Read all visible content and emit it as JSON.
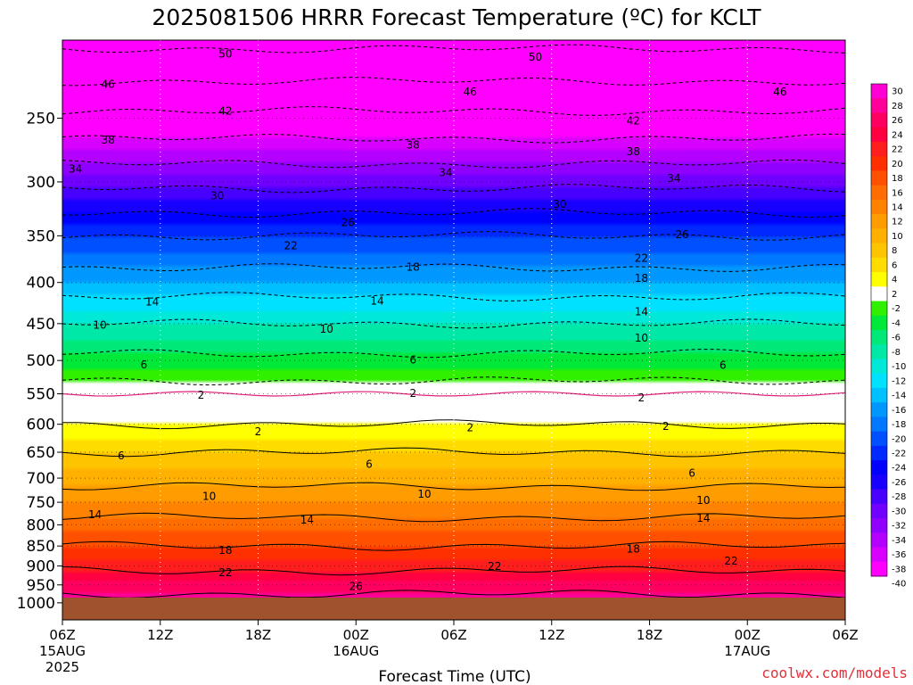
{
  "chart_data": {
    "type": "heatmap",
    "title": "2025081506 HRRR Forecast Temperature (ºC) for KCLT",
    "xlabel": "Forecast Time (UTC)",
    "ylabel": "",
    "y_axis": {
      "scale": "log-pressure",
      "inverted": true,
      "range": [
        1050,
        200
      ],
      "ticks": [
        "250",
        "300",
        "350",
        "400",
        "450",
        "500",
        "550",
        "600",
        "650",
        "700",
        "750",
        "800",
        "850",
        "900",
        "950",
        "1000"
      ],
      "tick_values": [
        250,
        300,
        350,
        400,
        450,
        500,
        550,
        600,
        650,
        700,
        750,
        800,
        850,
        900,
        950,
        1000
      ]
    },
    "x_axis": {
      "range_hours": [
        0,
        48
      ],
      "ticks": [
        {
          "hour": 0,
          "lines": [
            "06Z",
            "15AUG",
            "2025"
          ]
        },
        {
          "hour": 6,
          "lines": [
            "12Z"
          ]
        },
        {
          "hour": 12,
          "lines": [
            "18Z"
          ]
        },
        {
          "hour": 18,
          "lines": [
            "00Z",
            "16AUG"
          ]
        },
        {
          "hour": 24,
          "lines": [
            "06Z"
          ]
        },
        {
          "hour": 30,
          "lines": [
            "12Z"
          ]
        },
        {
          "hour": 36,
          "lines": [
            "18Z"
          ]
        },
        {
          "hour": 42,
          "lines": [
            "00Z",
            "17AUG"
          ]
        },
        {
          "hour": 48,
          "lines": [
            "06Z"
          ]
        }
      ]
    },
    "grid": true,
    "surface_fill_color": "#a0522d",
    "surface_pressure": 985,
    "temperature_profile": [
      {
        "p": 200,
        "t": -51
      },
      {
        "p": 250,
        "t": -41
      },
      {
        "p": 300,
        "t": -31
      },
      {
        "p": 350,
        "t": -22
      },
      {
        "p": 400,
        "t": -16
      },
      {
        "p": 450,
        "t": -10
      },
      {
        "p": 500,
        "t": -5
      },
      {
        "p": 550,
        "t": 0
      },
      {
        "p": 580,
        "t": 1
      },
      {
        "p": 600,
        "t": 2
      },
      {
        "p": 650,
        "t": 6
      },
      {
        "p": 700,
        "t": 9
      },
      {
        "p": 750,
        "t": 12
      },
      {
        "p": 800,
        "t": 15
      },
      {
        "p": 850,
        "t": 18
      },
      {
        "p": 900,
        "t": 21
      },
      {
        "p": 950,
        "t": 25
      },
      {
        "p": 1000,
        "t": 27
      }
    ],
    "colorbar": {
      "labels": [
        "30",
        "28",
        "26",
        "24",
        "22",
        "20",
        "18",
        "16",
        "14",
        "12",
        "10",
        "8",
        "6",
        "4",
        "2",
        "-2",
        "-4",
        "-6",
        "-8",
        "-10",
        "-12",
        "-14",
        "-16",
        "-18",
        "-20",
        "-22",
        "-24",
        "-26",
        "-28",
        "-30",
        "-32",
        "-34",
        "-36",
        "-38",
        "-40"
      ],
      "colors": [
        "#ff00d4",
        "#ff0099",
        "#ff0060",
        "#ff0040",
        "#ff1e1e",
        "#ff3000",
        "#ff5000",
        "#ff6c00",
        "#ff8200",
        "#ff9c00",
        "#ffb000",
        "#ffc400",
        "#ffdc00",
        "#ffff00",
        "#ffffff",
        "#30f000",
        "#00e838",
        "#00e878",
        "#00e8a8",
        "#00e8d8",
        "#00e0ff",
        "#00c0ff",
        "#0098ff",
        "#0078ff",
        "#0050ff",
        "#0028ff",
        "#0000ff",
        "#1800ff",
        "#4800ff",
        "#7000ff",
        "#9000ff",
        "#b400ff",
        "#d800ff",
        "#ff00ff"
      ]
    },
    "contour_labels": [
      {
        "text": "50",
        "hour": 10,
        "p": 208
      },
      {
        "text": "50",
        "hour": 29,
        "p": 210
      },
      {
        "text": "46",
        "hour": 2.8,
        "p": 227
      },
      {
        "text": "46",
        "hour": 25,
        "p": 232
      },
      {
        "text": "46",
        "hour": 44,
        "p": 232
      },
      {
        "text": "42",
        "hour": 10,
        "p": 245
      },
      {
        "text": "42",
        "hour": 35,
        "p": 252
      },
      {
        "text": "38",
        "hour": 2.8,
        "p": 266
      },
      {
        "text": "38",
        "hour": 21.5,
        "p": 270
      },
      {
        "text": "38",
        "hour": 35,
        "p": 275
      },
      {
        "text": "34",
        "hour": 0.8,
        "p": 289
      },
      {
        "text": "34",
        "hour": 23.5,
        "p": 292
      },
      {
        "text": "34",
        "hour": 37.5,
        "p": 297
      },
      {
        "text": "30",
        "hour": 9.5,
        "p": 312
      },
      {
        "text": "30",
        "hour": 30.5,
        "p": 320
      },
      {
        "text": "26",
        "hour": 17.5,
        "p": 337
      },
      {
        "text": "26",
        "hour": 38,
        "p": 349
      },
      {
        "text": "22",
        "hour": 14,
        "p": 360
      },
      {
        "text": "22",
        "hour": 35.5,
        "p": 373
      },
      {
        "text": "18",
        "hour": 21.5,
        "p": 383
      },
      {
        "text": "18",
        "hour": 35.5,
        "p": 395
      },
      {
        "text": "14",
        "hour": 5.5,
        "p": 423
      },
      {
        "text": "14",
        "hour": 19.3,
        "p": 422
      },
      {
        "text": "14",
        "hour": 35.5,
        "p": 435
      },
      {
        "text": "10",
        "hour": 2.3,
        "p": 452
      },
      {
        "text": "10",
        "hour": 16.2,
        "p": 457
      },
      {
        "text": "10",
        "hour": 35.5,
        "p": 469
      },
      {
        "text": "6",
        "hour": 5,
        "p": 506
      },
      {
        "text": "6",
        "hour": 21.5,
        "p": 499
      },
      {
        "text": "6",
        "hour": 40.5,
        "p": 507
      },
      {
        "text": "2",
        "hour": 8.5,
        "p": 552
      },
      {
        "text": "2",
        "hour": 21.5,
        "p": 549
      },
      {
        "text": "2",
        "hour": 35.5,
        "p": 556
      },
      {
        "text": "2",
        "hour": 12,
        "p": 613
      },
      {
        "text": "2",
        "hour": 25,
        "p": 606
      },
      {
        "text": "2",
        "hour": 37,
        "p": 604
      },
      {
        "text": "6",
        "hour": 3.6,
        "p": 657
      },
      {
        "text": "6",
        "hour": 18.8,
        "p": 673
      },
      {
        "text": "6",
        "hour": 38.6,
        "p": 690
      },
      {
        "text": "10",
        "hour": 9,
        "p": 737
      },
      {
        "text": "10",
        "hour": 22.2,
        "p": 733
      },
      {
        "text": "10",
        "hour": 39.3,
        "p": 746
      },
      {
        "text": "14",
        "hour": 2,
        "p": 777
      },
      {
        "text": "14",
        "hour": 15,
        "p": 789
      },
      {
        "text": "14",
        "hour": 39.3,
        "p": 785
      },
      {
        "text": "18",
        "hour": 10,
        "p": 860
      },
      {
        "text": "18",
        "hour": 35,
        "p": 857
      },
      {
        "text": "22",
        "hour": 10,
        "p": 917
      },
      {
        "text": "22",
        "hour": 26.5,
        "p": 901
      },
      {
        "text": "22",
        "hour": 41,
        "p": 887
      },
      {
        "text": "26",
        "hour": 18,
        "p": 954
      }
    ],
    "credit": "coolwx.com/models"
  }
}
